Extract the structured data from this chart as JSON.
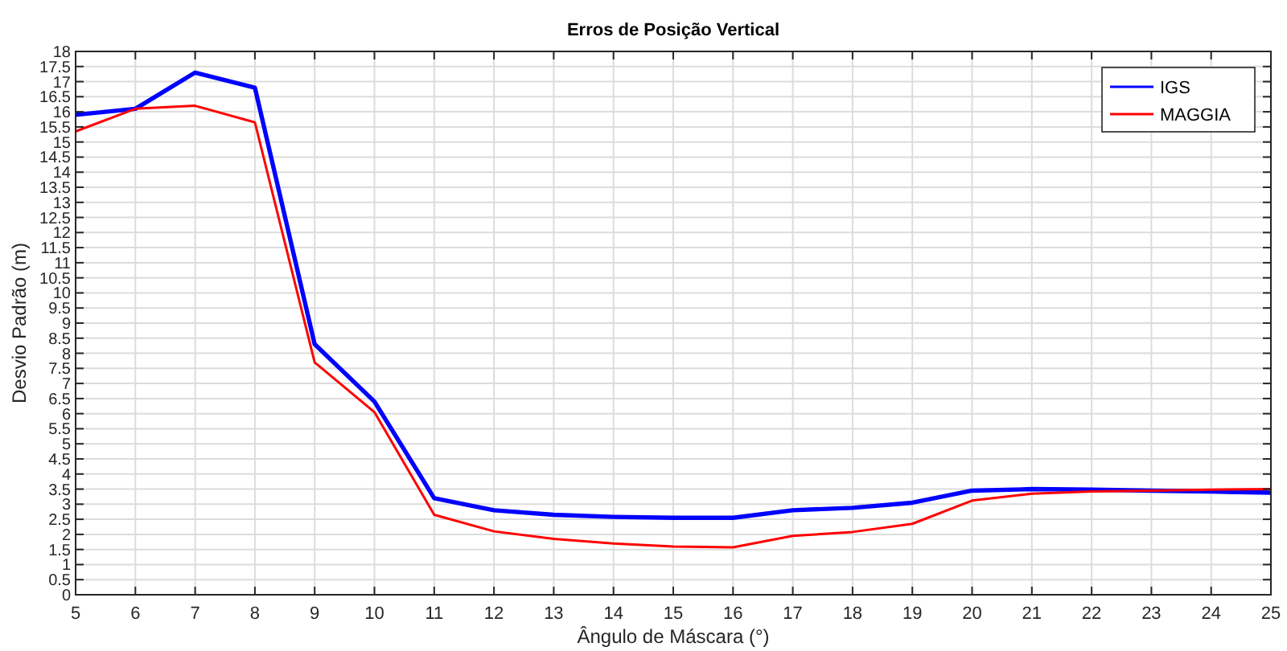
{
  "chart_data": {
    "type": "line",
    "title": "Erros de Posição Vertical",
    "xlabel": "Ângulo de Máscara (°)",
    "ylabel": "Desvio Padrão (m)",
    "x": [
      5,
      6,
      7,
      8,
      9,
      10,
      11,
      12,
      13,
      14,
      15,
      16,
      17,
      18,
      19,
      20,
      21,
      22,
      23,
      24,
      25
    ],
    "series": [
      {
        "name": "IGS",
        "color": "#0000ff",
        "values": [
          15.9,
          16.1,
          17.3,
          16.8,
          8.3,
          6.4,
          3.2,
          2.8,
          2.65,
          2.58,
          2.55,
          2.55,
          2.8,
          2.88,
          3.05,
          3.45,
          3.5,
          3.48,
          3.45,
          3.42,
          3.38
        ]
      },
      {
        "name": "MAGGIA",
        "color": "#ff0000",
        "values": [
          15.35,
          16.1,
          16.2,
          15.65,
          7.7,
          6.05,
          2.65,
          2.1,
          1.85,
          1.7,
          1.6,
          1.57,
          1.95,
          2.08,
          2.35,
          3.12,
          3.35,
          3.42,
          3.45,
          3.48,
          3.5
        ]
      }
    ],
    "xlim": [
      5,
      25
    ],
    "xticks": [
      5,
      6,
      7,
      8,
      9,
      10,
      11,
      12,
      13,
      14,
      15,
      16,
      17,
      18,
      19,
      20,
      21,
      22,
      23,
      24,
      25
    ],
    "ylim": [
      0,
      18
    ],
    "yticks": [
      0,
      0.5,
      1,
      1.5,
      2,
      2.5,
      3,
      3.5,
      4,
      4.5,
      5,
      5.5,
      6,
      6.5,
      7,
      7.5,
      8,
      8.5,
      9,
      9.5,
      10,
      10.5,
      11,
      11.5,
      12,
      12.5,
      13,
      13.5,
      14,
      14.5,
      15,
      15.5,
      16,
      16.5,
      17,
      17.5,
      18
    ],
    "grid": true,
    "legend": "top right",
    "line_style": "solid",
    "marker": "none"
  }
}
